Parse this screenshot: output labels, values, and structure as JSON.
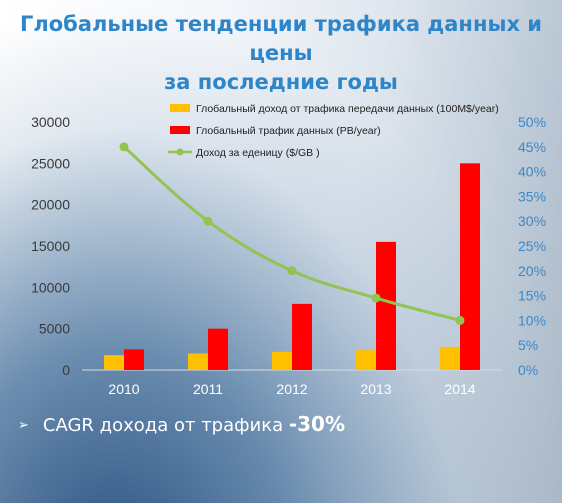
{
  "title": {
    "line1": "Глобальные тенденции трафика данных и цены",
    "line2": "за последние годы"
  },
  "bullet": {
    "marker": "➢",
    "text": "CAGR дохода от трафика ",
    "value": "-30%"
  },
  "colors": {
    "title": "#2e86c8",
    "revenue_bar": "#ffc000",
    "traffic_bar": "#ff0000",
    "price_line": "#92c353",
    "right_axis": "#3b88c8",
    "bullet_text": "#ffffff"
  },
  "chart_data": {
    "type": "bar",
    "categories": [
      "2010",
      "2011",
      "2012",
      "2013",
      "2014"
    ],
    "series": [
      {
        "name": "Глобальный доход от трафика передачи данных (100M$/year)",
        "type": "bar",
        "axis": "left",
        "values": [
          1800,
          2000,
          2200,
          2400,
          2800
        ]
      },
      {
        "name": "Глобальный трафик данных (PB/year)",
        "type": "bar",
        "axis": "left",
        "values": [
          2500,
          5000,
          8000,
          15500,
          25000
        ]
      },
      {
        "name": "Доход за еденицу ($/GB )",
        "type": "line",
        "axis": "right",
        "values": [
          0.45,
          0.3,
          0.2,
          0.145,
          0.1
        ]
      }
    ],
    "y_left": {
      "ylim": [
        0,
        30000
      ],
      "ticks": [
        "0",
        "5000",
        "10000",
        "15000",
        "20000",
        "25000",
        "30000"
      ]
    },
    "y_right": {
      "ylim": [
        0,
        0.5
      ],
      "ticks": [
        "0%",
        "5%",
        "10%",
        "15%",
        "20%",
        "25%",
        "30%",
        "35%",
        "40%",
        "45%",
        "50%"
      ]
    },
    "grid": false,
    "legend_position": "top-center"
  }
}
